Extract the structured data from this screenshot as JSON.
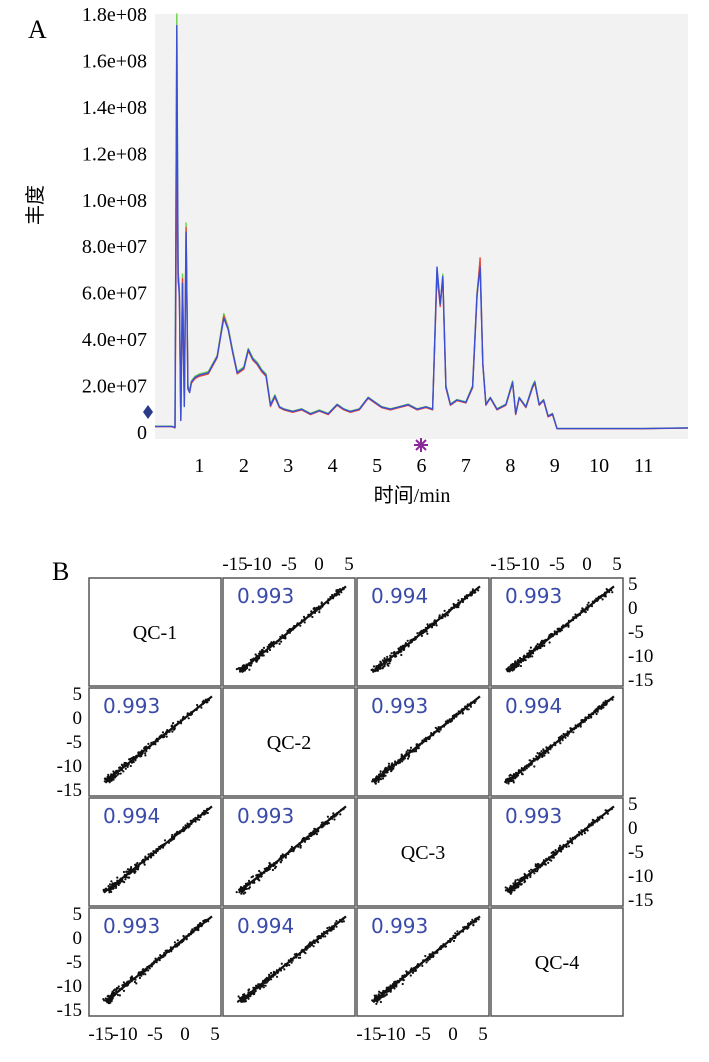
{
  "chart_data": [
    {
      "type": "line",
      "panel_label": "A",
      "title": "",
      "xlabel": "时间/min",
      "ylabel": "丰度",
      "xlim": [
        0,
        12
      ],
      "ylim": [
        0,
        180000000
      ],
      "x_ticks": [
        1,
        2,
        3,
        4,
        5,
        6,
        7,
        8,
        9,
        10,
        11
      ],
      "y_ticks": [
        0,
        20000000,
        40000000,
        60000000,
        80000000,
        100000000,
        120000000,
        140000000,
        160000000,
        180000000
      ],
      "y_tick_labels": [
        "0",
        "2.0e+07",
        "4.0e+07",
        "6.0e+07",
        "8.0e+07",
        "1.0e+08",
        "1.2e+08",
        "1.4e+08",
        "1.6e+08",
        "1.8e+08"
      ],
      "series": [
        {
          "name": "trace-green",
          "color": "#6fcf4a",
          "x": [
            0.0,
            0.38,
            0.45,
            0.49,
            0.52,
            0.55,
            0.58,
            0.62,
            0.66,
            0.7,
            0.74,
            0.78,
            0.82,
            0.9,
            1.0,
            1.2,
            1.4,
            1.55,
            1.65,
            1.75,
            1.85,
            2.0,
            2.1,
            2.2,
            2.3,
            2.4,
            2.5,
            2.6,
            2.7,
            2.8,
            2.9,
            3.1,
            3.3,
            3.5,
            3.7,
            3.9,
            4.1,
            4.25,
            4.4,
            4.6,
            4.8,
            4.95,
            5.1,
            5.3,
            5.5,
            5.7,
            5.9,
            6.1,
            6.25,
            6.35,
            6.42,
            6.48,
            6.55,
            6.65,
            6.8,
            7.0,
            7.15,
            7.25,
            7.32,
            7.38,
            7.45,
            7.55,
            7.7,
            7.9,
            8.05,
            8.12,
            8.2,
            8.35,
            8.5,
            8.55,
            8.65,
            8.75,
            8.85,
            8.95,
            9.05,
            9.3,
            10,
            11,
            12
          ],
          "y": [
            2500000,
            2500000,
            2000000,
            180000000,
            70000000,
            62000000,
            5000000,
            68000000,
            12000000,
            90000000,
            20000000,
            18000000,
            22000000,
            24000000,
            25000000,
            26000000,
            33000000,
            51000000,
            45000000,
            35000000,
            26000000,
            28000000,
            36000000,
            32000000,
            30000000,
            27000000,
            25000000,
            12000000,
            16000000,
            11000000,
            10000000,
            9000000,
            10000000,
            8000000,
            9500000,
            8000000,
            12000000,
            10000000,
            9000000,
            10000000,
            15000000,
            13000000,
            11000000,
            10000000,
            11000000,
            12000000,
            10000000,
            11000000,
            10000000,
            70000000,
            55000000,
            68000000,
            20000000,
            12000000,
            14000000,
            13000000,
            20000000,
            60000000,
            73000000,
            30000000,
            12000000,
            15000000,
            10000000,
            12000000,
            22000000,
            8000000,
            15000000,
            11000000,
            20000000,
            22000000,
            12000000,
            14000000,
            7000000,
            8000000,
            1500000,
            1500000,
            1500000,
            1500000,
            1800000
          ]
        },
        {
          "name": "trace-red",
          "color": "#e8483a",
          "x": [
            0.0,
            0.38,
            0.45,
            0.49,
            0.52,
            0.55,
            0.58,
            0.62,
            0.66,
            0.7,
            0.74,
            0.78,
            0.82,
            0.9,
            1.0,
            1.2,
            1.4,
            1.55,
            1.65,
            1.75,
            1.85,
            2.0,
            2.1,
            2.2,
            2.3,
            2.4,
            2.5,
            2.6,
            2.7,
            2.8,
            2.9,
            3.1,
            3.3,
            3.5,
            3.7,
            3.9,
            4.1,
            4.25,
            4.4,
            4.6,
            4.8,
            4.95,
            5.1,
            5.3,
            5.5,
            5.7,
            5.9,
            6.1,
            6.25,
            6.35,
            6.42,
            6.48,
            6.55,
            6.65,
            6.8,
            7.0,
            7.15,
            7.25,
            7.32,
            7.38,
            7.45,
            7.55,
            7.7,
            7.9,
            8.05,
            8.12,
            8.2,
            8.35,
            8.5,
            8.55,
            8.65,
            8.75,
            8.85,
            8.95,
            9.05,
            9.3,
            10,
            11,
            12
          ],
          "y": [
            2300000,
            2300000,
            1800000,
            120000000,
            65000000,
            60000000,
            5000000,
            66000000,
            12000000,
            88000000,
            19000000,
            17000000,
            21000000,
            23000000,
            24000000,
            25000000,
            32000000,
            50000000,
            44000000,
            34000000,
            25000000,
            27000000,
            35000000,
            31000000,
            29000000,
            26000000,
            24000000,
            11000000,
            15000000,
            10500000,
            9500000,
            8500000,
            9500000,
            7500000,
            9000000,
            7500000,
            11500000,
            9500000,
            8500000,
            9500000,
            14500000,
            12500000,
            10500000,
            9500000,
            10500000,
            11500000,
            9500000,
            10500000,
            9500000,
            68000000,
            54000000,
            66000000,
            19000000,
            11500000,
            13500000,
            12500000,
            19000000,
            58000000,
            75000000,
            29000000,
            11500000,
            14500000,
            9500000,
            11500000,
            21000000,
            7500000,
            14500000,
            10500000,
            19000000,
            21000000,
            11500000,
            13500000,
            6500000,
            7500000,
            1400000,
            1400000,
            1400000,
            1400000,
            1700000
          ]
        },
        {
          "name": "trace-blue",
          "color": "#3a4fd6",
          "x": [
            0.0,
            0.38,
            0.45,
            0.49,
            0.52,
            0.55,
            0.58,
            0.62,
            0.66,
            0.7,
            0.74,
            0.78,
            0.82,
            0.9,
            1.0,
            1.2,
            1.4,
            1.55,
            1.65,
            1.75,
            1.85,
            2.0,
            2.1,
            2.2,
            2.3,
            2.4,
            2.5,
            2.6,
            2.7,
            2.8,
            2.9,
            3.1,
            3.3,
            3.5,
            3.7,
            3.9,
            4.1,
            4.25,
            4.4,
            4.6,
            4.8,
            4.95,
            5.1,
            5.3,
            5.5,
            5.7,
            5.9,
            6.1,
            6.25,
            6.35,
            6.42,
            6.48,
            6.55,
            6.65,
            6.8,
            7.0,
            7.15,
            7.25,
            7.32,
            7.38,
            7.45,
            7.55,
            7.7,
            7.9,
            8.05,
            8.12,
            8.2,
            8.35,
            8.5,
            8.55,
            8.65,
            8.75,
            8.85,
            8.95,
            9.05,
            9.3,
            10,
            11,
            12
          ],
          "y": [
            2400000,
            2400000,
            1900000,
            175000000,
            68000000,
            58000000,
            5000000,
            64000000,
            11000000,
            86000000,
            18500000,
            17000000,
            21500000,
            23500000,
            24500000,
            25500000,
            32500000,
            49000000,
            44000000,
            34500000,
            25500000,
            27500000,
            35500000,
            31500000,
            29500000,
            26500000,
            24500000,
            11500000,
            15500000,
            10800000,
            9800000,
            8800000,
            9800000,
            7800000,
            9200000,
            7800000,
            11800000,
            9800000,
            8800000,
            9800000,
            14800000,
            12800000,
            10800000,
            9800000,
            10800000,
            11800000,
            9800000,
            10800000,
            9800000,
            71000000,
            55000000,
            67000000,
            19500000,
            11800000,
            13800000,
            12800000,
            19500000,
            59000000,
            71000000,
            29500000,
            11800000,
            14800000,
            9800000,
            11800000,
            21500000,
            7800000,
            14800000,
            10800000,
            19500000,
            21500000,
            11800000,
            13800000,
            6800000,
            7800000,
            1450000,
            1450000,
            1450000,
            1450000,
            1750000
          ]
        }
      ]
    },
    {
      "type": "scatter-matrix",
      "panel_label": "B",
      "title": "",
      "axis_range": [
        -15,
        5
      ],
      "axis_ticks": [
        -15,
        -10,
        -5,
        0,
        5
      ],
      "axis_tick_labels": [
        "-15",
        "-10",
        "-5",
        "0",
        "5"
      ],
      "samples": [
        "QC-1",
        "QC-2",
        "QC-3",
        "QC-4"
      ],
      "correlation": [
        [
          null,
          "0.993",
          "0.994",
          "0.993"
        ],
        [
          "0.993",
          null,
          "0.993",
          "0.994"
        ],
        [
          "0.994",
          "0.993",
          null,
          "0.993"
        ],
        [
          "0.993",
          "0.994",
          "0.993",
          null
        ]
      ]
    }
  ]
}
